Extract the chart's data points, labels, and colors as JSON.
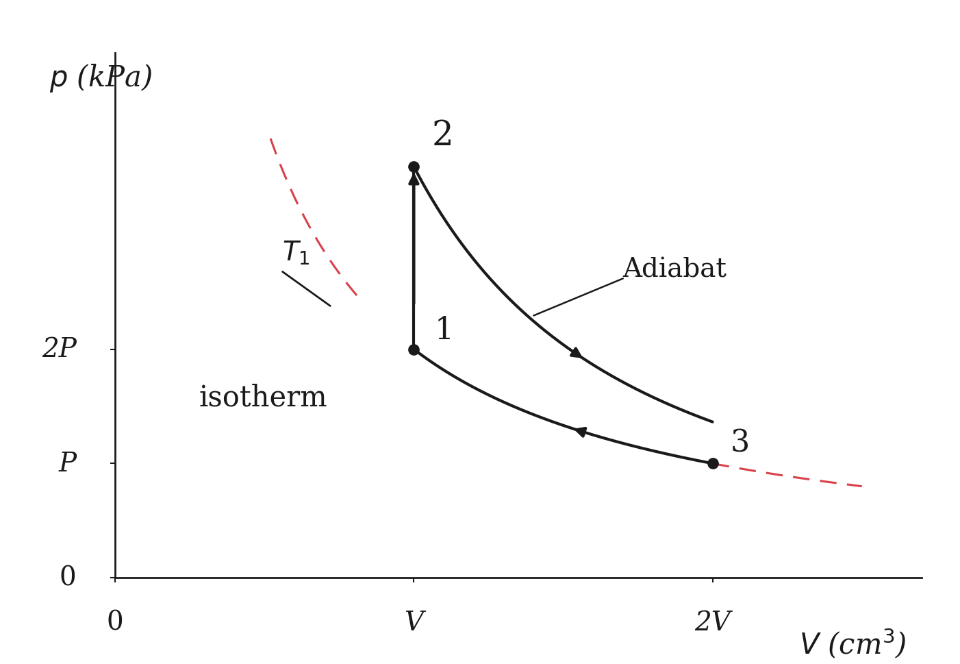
{
  "background_color": "#ffffff",
  "fig_width": 14.02,
  "fig_height": 9.7,
  "dpi": 100,
  "points": {
    "1": [
      1.0,
      2.0
    ],
    "2": [
      1.0,
      3.6
    ],
    "3": [
      2.0,
      1.0
    ]
  },
  "xlim": [
    0,
    2.7
  ],
  "ylim": [
    0,
    4.6
  ],
  "xticks": [
    0,
    1.0,
    2.0
  ],
  "xticklabels": [
    "0",
    "V",
    "2V"
  ],
  "yticks": [
    0,
    1.0,
    2.0
  ],
  "yticklabels": [
    "0",
    "P",
    "2P"
  ],
  "point_color": "#1a1a1a",
  "line_color": "#1a1a1a",
  "dashed_color": "#d9404a",
  "gamma": 1.4,
  "point_size": 11,
  "line_width": 3.0
}
